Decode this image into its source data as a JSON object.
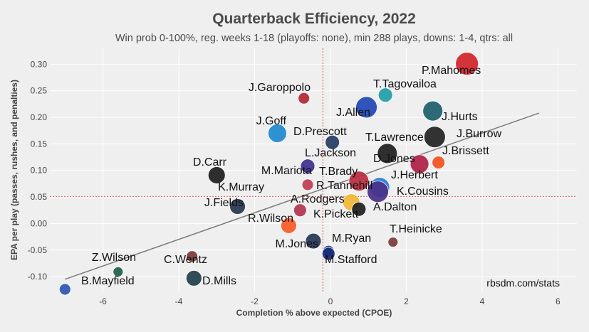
{
  "chart_data": {
    "type": "scatter",
    "title": "Quarterback Efficiency, 2022",
    "subtitle": "Win prob 0-100%, reg. weeks 1-18 (playoffs: none), min 288 plays, downs: 1-4, qtrs: all",
    "xlabel": "Completion % above expected (CPOE)",
    "ylabel": "EPA per play (passes, rushes, and penalties)",
    "credit": "rbsdm.com/stats",
    "xlim": [
      -7.4,
      6.5
    ],
    "ylim": [
      -0.128,
      0.33
    ],
    "x_ticks": [
      -6,
      -4,
      -2,
      0,
      2,
      4,
      6
    ],
    "y_ticks": [
      -0.1,
      -0.05,
      0.0,
      0.05,
      0.1,
      0.15,
      0.2,
      0.25,
      0.3
    ],
    "x_tick_labels": [
      "-6",
      "-4",
      "-2",
      "0",
      "2",
      "4",
      "6"
    ],
    "y_tick_labels": [
      "-0.10",
      "-0.05",
      "0.00",
      "0.05",
      "0.10",
      "0.15",
      "0.20",
      "0.25",
      "0.30"
    ],
    "grid": true,
    "reference_lines": {
      "x": -0.2,
      "y": 0.051,
      "color": "#e05555"
    },
    "trend_line": {
      "x": [
        -7.0,
        5.5
      ],
      "y": [
        -0.105,
        0.208
      ],
      "color": "#7a7a7a"
    },
    "points": [
      {
        "name": "P.Mahomes",
        "x": 3.6,
        "y": 0.301,
        "size": 16,
        "color": "#d2232a"
      },
      {
        "name": "T.Tagovailoa",
        "x": 1.45,
        "y": 0.242,
        "size": 10,
        "color": "#1f9ea6"
      },
      {
        "name": "J.Garoppolo",
        "x": -0.7,
        "y": 0.236,
        "size": 8,
        "color": "#b3272f"
      },
      {
        "name": "J.Allen",
        "x": 0.95,
        "y": 0.219,
        "size": 15,
        "color": "#1f46b4"
      },
      {
        "name": "J.Hurts",
        "x": 2.7,
        "y": 0.212,
        "size": 14,
        "color": "#1d5e6a"
      },
      {
        "name": "J.Goff",
        "x": -1.4,
        "y": 0.17,
        "size": 13,
        "color": "#1e88cf"
      },
      {
        "name": "J.Burrow",
        "x": 2.75,
        "y": 0.163,
        "size": 15,
        "color": "#222222"
      },
      {
        "name": "D.Prescott",
        "x": 0.05,
        "y": 0.153,
        "size": 10,
        "color": "#233c62"
      },
      {
        "name": "T.Lawrence",
        "x": 1.5,
        "y": 0.132,
        "size": 14,
        "color": "#1e1e1e"
      },
      {
        "name": "J.Brissett",
        "x": 2.85,
        "y": 0.115,
        "size": 9,
        "color": "#f2501f"
      },
      {
        "name": "D.Jones",
        "x": 2.35,
        "y": 0.112,
        "size": 13,
        "color": "#b01e44"
      },
      {
        "name": "L.Jackson",
        "x": -0.6,
        "y": 0.108,
        "size": 10,
        "color": "#3d2f8c"
      },
      {
        "name": "D.Carr",
        "x": -3.0,
        "y": 0.091,
        "size": 12,
        "color": "#1c1c1c"
      },
      {
        "name": "T.Brady",
        "x": 0.75,
        "y": 0.08,
        "size": 14,
        "color": "#b82e3e"
      },
      {
        "name": "M.Mariota",
        "x": -0.6,
        "y": 0.073,
        "size": 8,
        "color": "#c23a52"
      },
      {
        "name": "J.Herbert",
        "x": 1.3,
        "y": 0.068,
        "size": 14,
        "color": "#2a7fd0"
      },
      {
        "name": "K.Cousins",
        "x": 1.25,
        "y": 0.06,
        "size": 15,
        "color": "#4b2f88"
      },
      {
        "name": "R.Tannehill",
        "x": 0.55,
        "y": 0.04,
        "size": 12,
        "color": "#f0b732"
      },
      {
        "name": "K.Murray",
        "x": -2.45,
        "y": 0.032,
        "size": 11,
        "color": "#26364e"
      },
      {
        "name": "A.Dalton",
        "x": 0.75,
        "y": 0.027,
        "size": 10,
        "color": "#1e1e1e"
      },
      {
        "name": "A.Rodgers",
        "x": -0.8,
        "y": 0.025,
        "size": 9,
        "color": "#b23550"
      },
      {
        "name": "R.Wilson",
        "x": -1.1,
        "y": -0.004,
        "size": 11,
        "color": "#fa5a24"
      },
      {
        "name": "M.Jones",
        "x": -0.45,
        "y": -0.033,
        "size": 11,
        "color": "#253554"
      },
      {
        "name": "T.Heinicke",
        "x": 1.65,
        "y": -0.035,
        "size": 7,
        "color": "#7a3a3a"
      },
      {
        "name": "M.Ryan",
        "x": -0.05,
        "y": -0.052,
        "size": 8,
        "color": "#1f3d8a"
      },
      {
        "name": "M.Stafford",
        "x": -0.05,
        "y": -0.057,
        "size": 9,
        "color": "#1a2d7a"
      },
      {
        "name": "C.Wentz",
        "x": -3.65,
        "y": -0.062,
        "size": 8,
        "color": "#7a3a3a"
      },
      {
        "name": "Z.Wilson",
        "x": -5.6,
        "y": -0.091,
        "size": 7,
        "color": "#1e5e4a"
      },
      {
        "name": "D.Mills",
        "x": -3.6,
        "y": -0.103,
        "size": 11,
        "color": "#1f3e4a"
      },
      {
        "name": "B.Mayfield",
        "x": -7.0,
        "y": -0.124,
        "size": 8,
        "color": "#2d55b0"
      }
    ]
  }
}
